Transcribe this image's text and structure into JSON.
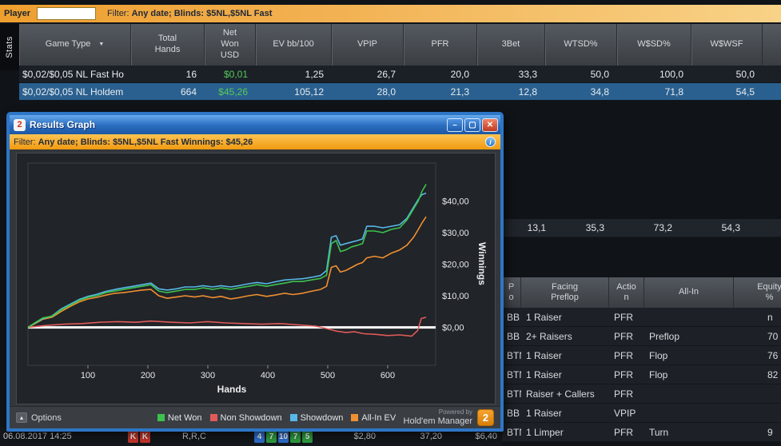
{
  "top_bar": {
    "player_label": "Player",
    "player_input_value": "",
    "filter_label": "Filter:",
    "filter_value": "Any date; Blinds: $5NL,$5NL Fast"
  },
  "stats_tab": {
    "label": "Stats"
  },
  "main_table": {
    "columns": [
      "Game Type",
      "Total\nHands",
      "Net\nWon\nUSD",
      "EV bb/100",
      "VPIP",
      "PFR",
      "3Bet",
      "WTSD%",
      "W$SD%",
      "W$WSF"
    ],
    "rows": [
      {
        "game_type": "$0,02/$0,05 NL Fast Ho",
        "selected": false,
        "cells": [
          "16",
          "$0,01",
          "1,25",
          "26,7",
          "20,0",
          "33,3",
          "50,0",
          "100,0",
          "50,0"
        ]
      },
      {
        "game_type": "$0,02/$0,05 NL Holdem",
        "selected": true,
        "cells": [
          "664",
          "$45,26",
          "105,12",
          "28,0",
          "21,3",
          "12,8",
          "34,8",
          "71,8",
          "54,5"
        ]
      }
    ]
  },
  "partial_row": {
    "values": [
      "13,1",
      "35,3",
      "73,2",
      "54,3"
    ]
  },
  "table2": {
    "columns": [
      "P\no",
      "Facing\nPreflop",
      "Actio\nn",
      "All-In",
      "Equity\n%"
    ],
    "rows": [
      {
        "cells": [
          "BB",
          "1 Raiser",
          "PFR",
          "",
          "n"
        ]
      },
      {
        "cells": [
          "BB",
          "2+ Raisers",
          "PFR",
          "Preflop",
          "70"
        ]
      },
      {
        "cells": [
          "BTN",
          "1 Raiser",
          "PFR",
          "Flop",
          "76"
        ]
      },
      {
        "cells": [
          "BTN",
          "1 Raiser",
          "PFR",
          "Flop",
          "82"
        ]
      },
      {
        "cells": [
          "BTN",
          "Raiser + Callers",
          "PFR",
          "",
          ""
        ]
      },
      {
        "cells": [
          "BB",
          "1 Raiser",
          "VPIP",
          "",
          ""
        ]
      },
      {
        "cells": [
          "BTN",
          "1 Limper",
          "PFR",
          "Turn",
          "9"
        ]
      }
    ]
  },
  "hand_row": {
    "datetime": "06.08.2017 14:25",
    "hole_cards": [
      {
        "label": "K",
        "color": "#c8372d"
      },
      {
        "label": "K",
        "color": "#c8372d"
      }
    ],
    "actions": "R,R,C",
    "board_cards": [
      {
        "label": "4",
        "color": "#2f6fce"
      },
      {
        "label": "7",
        "color": "#2e9e40"
      },
      {
        "label": "10",
        "color": "#2f6fce"
      },
      {
        "label": "7",
        "color": "#2e9e40"
      },
      {
        "label": "5",
        "color": "#2e9e40"
      }
    ],
    "amount1": "$2,80",
    "amount2": "37,20",
    "amount3": "$6,40"
  },
  "popup": {
    "title": "Results Graph",
    "titlebar_icon": "2",
    "buttons": {
      "minimize": "–",
      "maximize": "▢",
      "close": "✕"
    },
    "filter": {
      "label": "Filter:",
      "value": "Any date; Blinds: $5NL,$5NL Fast",
      "winnings_label": "Winnings:",
      "winnings_value": "$45,26"
    },
    "info_glyph": "i",
    "options_label": "Options",
    "options_icon_glyph": "▴",
    "powered_by_line1": "Powered by",
    "powered_by_line2": "Hold'em Manager",
    "logo_glyph": "2"
  },
  "chart_data": {
    "type": "line",
    "title": "Results Graph",
    "xlabel": "Hands",
    "ylabel": "Winnings",
    "xlim": [
      0,
      680
    ],
    "ylim": [
      -12,
      52
    ],
    "x_ticks": [
      100,
      200,
      300,
      400,
      500,
      600
    ],
    "y_ticks": [
      0,
      10,
      20,
      30,
      40
    ],
    "y_tick_labels": [
      "$0,00",
      "$10,00",
      "$20,00",
      "$30,00",
      "$40,00"
    ],
    "zero_line": 0,
    "legend_position": "bottom",
    "grid": false,
    "series": [
      {
        "name": "Net Won",
        "color": "#3cc24e",
        "final_value": 45.26,
        "points": [
          [
            0,
            0
          ],
          [
            12,
            1.5
          ],
          [
            25,
            3
          ],
          [
            40,
            3.5
          ],
          [
            55,
            5.5
          ],
          [
            70,
            7
          ],
          [
            85,
            8.5
          ],
          [
            100,
            9.5
          ],
          [
            115,
            10
          ],
          [
            130,
            11
          ],
          [
            145,
            11.5
          ],
          [
            160,
            12
          ],
          [
            175,
            12.5
          ],
          [
            190,
            13
          ],
          [
            205,
            13.5
          ],
          [
            218,
            11.5
          ],
          [
            232,
            11
          ],
          [
            248,
            11.5
          ],
          [
            262,
            12
          ],
          [
            278,
            12
          ],
          [
            292,
            12.5
          ],
          [
            308,
            12
          ],
          [
            322,
            12.5
          ],
          [
            338,
            12
          ],
          [
            352,
            12.5
          ],
          [
            368,
            13
          ],
          [
            382,
            13.5
          ],
          [
            398,
            13
          ],
          [
            412,
            13.5
          ],
          [
            428,
            14
          ],
          [
            442,
            14.5
          ],
          [
            458,
            14.5
          ],
          [
            472,
            15
          ],
          [
            488,
            15.5
          ],
          [
            498,
            16.5
          ],
          [
            506,
            26.5
          ],
          [
            514,
            27.5
          ],
          [
            521,
            24
          ],
          [
            530,
            24.5
          ],
          [
            540,
            25.5
          ],
          [
            550,
            26
          ],
          [
            558,
            26.5
          ],
          [
            565,
            30.5
          ],
          [
            578,
            30.5
          ],
          [
            592,
            30
          ],
          [
            606,
            31
          ],
          [
            620,
            31.5
          ],
          [
            632,
            34
          ],
          [
            643,
            37.5
          ],
          [
            651,
            40
          ],
          [
            657,
            43
          ],
          [
            664,
            45.3
          ]
        ]
      },
      {
        "name": "Non Showdown",
        "color": "#e05a5a",
        "final_value": 3.2,
        "points": [
          [
            0,
            0
          ],
          [
            30,
            0.6
          ],
          [
            60,
            1
          ],
          [
            90,
            1.2
          ],
          [
            120,
            1.6
          ],
          [
            150,
            1.8
          ],
          [
            180,
            1.6
          ],
          [
            205,
            2
          ],
          [
            240,
            1.6
          ],
          [
            270,
            1.4
          ],
          [
            300,
            1.8
          ],
          [
            330,
            1.4
          ],
          [
            360,
            1.2
          ],
          [
            390,
            1
          ],
          [
            420,
            1.2
          ],
          [
            450,
            0.8
          ],
          [
            480,
            0.4
          ],
          [
            500,
            -0.5
          ],
          [
            515,
            -1.2
          ],
          [
            530,
            -1.6
          ],
          [
            545,
            -1.4
          ],
          [
            560,
            -2
          ],
          [
            580,
            -2.2
          ],
          [
            600,
            -2.6
          ],
          [
            620,
            -2.4
          ],
          [
            640,
            -2.8
          ],
          [
            650,
            -1
          ],
          [
            656,
            2.8
          ],
          [
            664,
            3.2
          ]
        ]
      },
      {
        "name": "Showdown",
        "color": "#57b7e8",
        "final_value": 42.5,
        "points": [
          [
            0,
            0
          ],
          [
            12,
            1.4
          ],
          [
            25,
            2.8
          ],
          [
            40,
            3.6
          ],
          [
            55,
            5.8
          ],
          [
            70,
            7.3
          ],
          [
            85,
            8.8
          ],
          [
            100,
            9.8
          ],
          [
            115,
            10.5
          ],
          [
            130,
            11.4
          ],
          [
            145,
            12
          ],
          [
            160,
            12.5
          ],
          [
            175,
            13
          ],
          [
            190,
            13.5
          ],
          [
            205,
            14
          ],
          [
            218,
            12.2
          ],
          [
            232,
            11.8
          ],
          [
            248,
            12.2
          ],
          [
            262,
            12.8
          ],
          [
            278,
            12.8
          ],
          [
            292,
            13.2
          ],
          [
            308,
            12.8
          ],
          [
            322,
            13.2
          ],
          [
            338,
            12.8
          ],
          [
            352,
            13.2
          ],
          [
            368,
            13.8
          ],
          [
            382,
            14.2
          ],
          [
            398,
            13.8
          ],
          [
            412,
            14.4
          ],
          [
            428,
            15
          ],
          [
            442,
            15.2
          ],
          [
            458,
            15.4
          ],
          [
            472,
            15.8
          ],
          [
            488,
            16.4
          ],
          [
            498,
            18
          ],
          [
            506,
            28.5
          ],
          [
            514,
            29
          ],
          [
            521,
            26
          ],
          [
            530,
            26.5
          ],
          [
            540,
            27
          ],
          [
            550,
            27.5
          ],
          [
            558,
            28
          ],
          [
            565,
            32
          ],
          [
            578,
            32
          ],
          [
            592,
            31.5
          ],
          [
            606,
            32
          ],
          [
            620,
            32.5
          ],
          [
            632,
            34.5
          ],
          [
            643,
            38
          ],
          [
            651,
            40.5
          ],
          [
            657,
            42
          ],
          [
            664,
            42.5
          ]
        ]
      },
      {
        "name": "All-In EV",
        "color": "#f09032",
        "final_value": 35,
        "points": [
          [
            0,
            0
          ],
          [
            12,
            1.2
          ],
          [
            25,
            2.6
          ],
          [
            40,
            3.2
          ],
          [
            55,
            5
          ],
          [
            70,
            6.6
          ],
          [
            85,
            8
          ],
          [
            100,
            9
          ],
          [
            115,
            9.5
          ],
          [
            130,
            10.2
          ],
          [
            145,
            10.8
          ],
          [
            160,
            11
          ],
          [
            175,
            11.4
          ],
          [
            190,
            11.8
          ],
          [
            205,
            12
          ],
          [
            218,
            10
          ],
          [
            232,
            9.2
          ],
          [
            248,
            9.6
          ],
          [
            262,
            10
          ],
          [
            278,
            9.6
          ],
          [
            292,
            10
          ],
          [
            308,
            9.4
          ],
          [
            322,
            9.8
          ],
          [
            338,
            9
          ],
          [
            352,
            9.4
          ],
          [
            368,
            10
          ],
          [
            382,
            10.4
          ],
          [
            398,
            9.8
          ],
          [
            412,
            10.2
          ],
          [
            428,
            10.8
          ],
          [
            442,
            10.4
          ],
          [
            458,
            10.8
          ],
          [
            472,
            11.4
          ],
          [
            488,
            12
          ],
          [
            498,
            13
          ],
          [
            506,
            19
          ],
          [
            514,
            19.5
          ],
          [
            521,
            17.5
          ],
          [
            530,
            18
          ],
          [
            540,
            19
          ],
          [
            550,
            20
          ],
          [
            558,
            20.5
          ],
          [
            565,
            22
          ],
          [
            578,
            22.5
          ],
          [
            592,
            22
          ],
          [
            606,
            23.5
          ],
          [
            620,
            24.5
          ],
          [
            632,
            26
          ],
          [
            643,
            28.5
          ],
          [
            651,
            31
          ],
          [
            657,
            33
          ],
          [
            664,
            35
          ]
        ]
      }
    ]
  }
}
